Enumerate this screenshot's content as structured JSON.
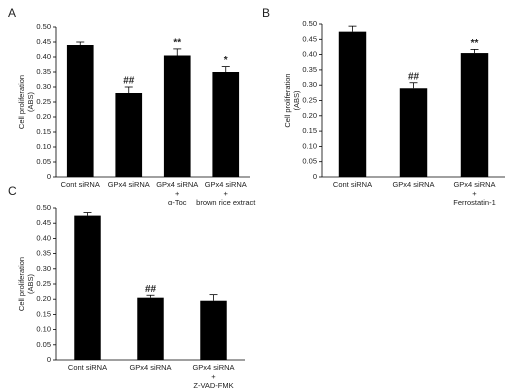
{
  "chart_data": [
    {
      "type": "bar",
      "panel": "A",
      "ylabel": [
        "Cell proliferation",
        "(ABS)"
      ],
      "categories": [
        [
          "Cont siRNA"
        ],
        [
          "GPx4 siRNA"
        ],
        [
          "GPx4 siRNA",
          "+",
          "α-Toc"
        ],
        [
          "GPx4 siRNA",
          "+",
          "brown rice extract"
        ]
      ],
      "values": [
        0.44,
        0.28,
        0.405,
        0.35
      ],
      "errors": [
        0.01,
        0.02,
        0.022,
        0.018
      ],
      "annotations": [
        null,
        "##",
        "**",
        "*"
      ],
      "color": "#000000",
      "ylim": [
        0,
        0.5
      ],
      "yticks": [
        0,
        0.05,
        {
          "value": 0.1,
          "label": "0.10"
        },
        0.15,
        {
          "value": 0.2,
          "label": "0.20"
        },
        0.25,
        {
          "value": 0.3,
          "label": "0.30"
        },
        0.35,
        {
          "value": 0.4,
          "label": "0.40"
        },
        0.45,
        {
          "value": 0.5,
          "label": "0.50"
        }
      ]
    },
    {
      "type": "bar",
      "panel": "B",
      "ylabel": [
        "Cell proliferation",
        "(ABS)"
      ],
      "categories": [
        [
          "Cont siRNA"
        ],
        [
          "GPx4 siRNA"
        ],
        [
          "GPx4 siRNA",
          "+",
          "Ferrostatin-1"
        ]
      ],
      "values": [
        0.475,
        0.29,
        0.405
      ],
      "errors": [
        0.018,
        0.018,
        0.012
      ],
      "annotations": [
        null,
        "##",
        "**"
      ],
      "color": "#000000",
      "ylim": [
        0,
        0.5
      ],
      "yticks": [
        0,
        0.05,
        {
          "value": 0.1,
          "label": "0.10"
        },
        0.15,
        {
          "value": 0.2,
          "label": "0.20"
        },
        0.25,
        {
          "value": 0.3,
          "label": "0.30"
        },
        0.35,
        {
          "value": 0.4,
          "label": "0.40"
        },
        0.45,
        {
          "value": 0.5,
          "label": "0.50"
        }
      ]
    },
    {
      "type": "bar",
      "panel": "C",
      "ylabel": [
        "Cell proliferation",
        "(ABS)"
      ],
      "categories": [
        [
          "Cont siRNA"
        ],
        [
          "GPx4 siRNA"
        ],
        [
          "GPx4 siRNA",
          "+",
          "Z-VAD-FMK"
        ]
      ],
      "values": [
        0.475,
        0.205,
        0.195
      ],
      "errors": [
        0.01,
        0.008,
        0.02
      ],
      "annotations": [
        null,
        "##",
        null
      ],
      "color": "#000000",
      "ylim": [
        0,
        0.5
      ],
      "yticks": [
        0,
        0.05,
        {
          "value": 0.1,
          "label": "0.10"
        },
        0.15,
        {
          "value": 0.2,
          "label": "0.20"
        },
        0.25,
        {
          "value": 0.3,
          "label": "0.30"
        },
        0.35,
        {
          "value": 0.4,
          "label": "0.40"
        },
        0.45,
        {
          "value": 0.5,
          "label": "0.50"
        }
      ]
    }
  ]
}
